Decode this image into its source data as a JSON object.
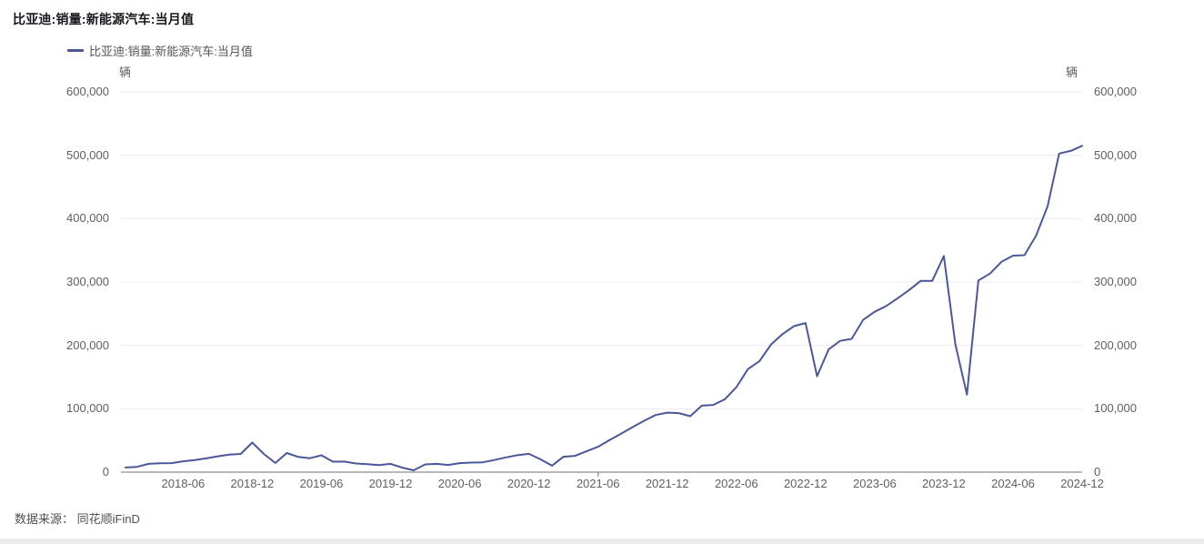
{
  "header": {
    "title": "比亚迪:销量:新能源汽车:当月值"
  },
  "legend": {
    "label": "比亚迪:销量:新能源汽车:当月值"
  },
  "footer": {
    "source": "数据来源： 同花顺iFinD"
  },
  "colors": {
    "line": "#4a5899",
    "grid": "#e9ebf3",
    "axis": "#6e7079",
    "label": "#5e5f66",
    "title": "#17171d"
  },
  "chart_data": {
    "type": "line",
    "title": "比亚迪:销量:新能源汽车:当月值",
    "series_name": "比亚迪:销量:新能源汽车:当月值",
    "unit": "辆",
    "xlabel": "",
    "ylabel": "辆",
    "ylim": [
      0,
      600000
    ],
    "y_tick_step": 100000,
    "grid": true,
    "legend_position": "top-left",
    "x_tick_labels": [
      "2018-06",
      "2018-12",
      "2019-06",
      "2019-12",
      "2020-06",
      "2020-12",
      "2021-06",
      "2021-12",
      "2022-06",
      "2022-12",
      "2023-06",
      "2023-12",
      "2024-06",
      "2024-12"
    ],
    "x": [
      "2018-01",
      "2018-02",
      "2018-03",
      "2018-04",
      "2018-05",
      "2018-06",
      "2018-07",
      "2018-08",
      "2018-09",
      "2018-10",
      "2018-11",
      "2018-12",
      "2019-01",
      "2019-02",
      "2019-03",
      "2019-04",
      "2019-05",
      "2019-06",
      "2019-07",
      "2019-08",
      "2019-09",
      "2019-10",
      "2019-11",
      "2019-12",
      "2020-01",
      "2020-02",
      "2020-03",
      "2020-04",
      "2020-05",
      "2020-06",
      "2020-07",
      "2020-08",
      "2020-09",
      "2020-10",
      "2020-11",
      "2020-12",
      "2021-01",
      "2021-02",
      "2021-03",
      "2021-04",
      "2021-05",
      "2021-06",
      "2021-07",
      "2021-08",
      "2021-09",
      "2021-10",
      "2021-11",
      "2021-12",
      "2022-01",
      "2022-02",
      "2022-03",
      "2022-04",
      "2022-05",
      "2022-06",
      "2022-07",
      "2022-08",
      "2022-09",
      "2022-10",
      "2022-11",
      "2022-12",
      "2023-01",
      "2023-02",
      "2023-03",
      "2023-04",
      "2023-05",
      "2023-06",
      "2023-07",
      "2023-08",
      "2023-09",
      "2023-10",
      "2023-11",
      "2023-12",
      "2024-01",
      "2024-02",
      "2024-03",
      "2024-04",
      "2024-05",
      "2024-06",
      "2024-07",
      "2024-08",
      "2024-09",
      "2024-10",
      "2024-11",
      "2024-12"
    ],
    "values": [
      7330,
      8357,
      13063,
      13899,
      14241,
      17011,
      18923,
      21741,
      25019,
      27667,
      28739,
      46650,
      28668,
      14429,
      30075,
      24011,
      21899,
      26571,
      16567,
      16719,
      13681,
      12567,
      11220,
      13099,
      7133,
      2803,
      12256,
      12995,
      11325,
      14165,
      15100,
      15499,
      19048,
      23217,
      26690,
      28841,
      20178,
      10245,
      24218,
      25662,
      32800,
      40116,
      50492,
      60508,
      71099,
      81040,
      90121,
      93945,
      93168,
      88283,
      104878,
      106042,
      114943,
      134036,
      162530,
      174915,
      201259,
      217816,
      230427,
      235197,
      151341,
      193655,
      207080,
      210295,
      240220,
      253046,
      262161,
      274386,
      287454,
      301833,
      301903,
      341043,
      201493,
      122311,
      302459,
      313245,
      331817,
      341658,
      342383,
      373083,
      419426,
      502657,
      506804,
      514809
    ]
  }
}
